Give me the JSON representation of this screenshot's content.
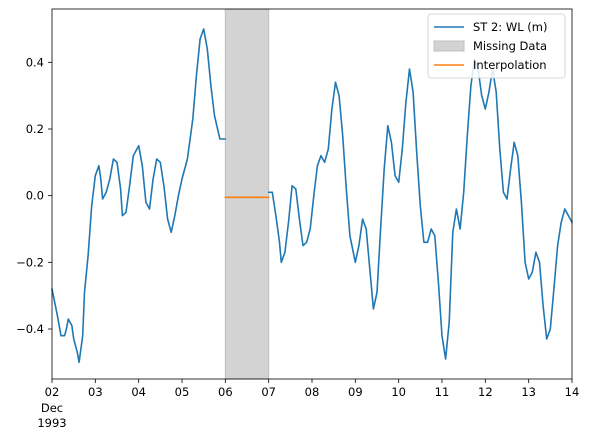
{
  "chart_data": {
    "type": "line",
    "title": "",
    "xlabel": "",
    "ylabel": "",
    "x_axis": {
      "type": "date",
      "range": [
        "1993-12-02",
        "1993-12-14"
      ],
      "ticks": [
        {
          "date": "1993-12-02",
          "label": "02",
          "sublabels": [
            "Dec",
            "1993"
          ]
        },
        {
          "date": "1993-12-03",
          "label": "03"
        },
        {
          "date": "1993-12-04",
          "label": "04"
        },
        {
          "date": "1993-12-05",
          "label": "05"
        },
        {
          "date": "1993-12-06",
          "label": "06"
        },
        {
          "date": "1993-12-07",
          "label": "07"
        },
        {
          "date": "1993-12-08",
          "label": "08"
        },
        {
          "date": "1993-12-09",
          "label": "09"
        },
        {
          "date": "1993-12-10",
          "label": "10"
        },
        {
          "date": "1993-12-11",
          "label": "11"
        },
        {
          "date": "1993-12-12",
          "label": "12"
        },
        {
          "date": "1993-12-13",
          "label": "13"
        },
        {
          "date": "1993-12-14",
          "label": "14"
        }
      ]
    },
    "y_axis": {
      "range": [
        -0.55,
        0.56
      ],
      "ticks": [
        {
          "value": -0.4,
          "label": "−0.4"
        },
        {
          "value": -0.2,
          "label": "−0.2"
        },
        {
          "value": 0.0,
          "label": "0.0"
        },
        {
          "value": 0.2,
          "label": "0.2"
        },
        {
          "value": 0.4,
          "label": "0.4"
        }
      ]
    },
    "grid": false,
    "legend_position": "top-right",
    "series": [
      {
        "name": "ST 2: WL (m)",
        "kind": "line",
        "color": "#1f77b4",
        "segments": [
          [
            [
              "1993-12-02 00:00",
              -0.28
            ],
            [
              "1993-12-02 03:00",
              -0.36
            ],
            [
              "1993-12-02 05:00",
              -0.42
            ],
            [
              "1993-12-02 07:00",
              -0.42
            ],
            [
              "1993-12-02 08:00",
              -0.4
            ],
            [
              "1993-12-02 09:00",
              -0.37
            ],
            [
              "1993-12-02 11:00",
              -0.39
            ],
            [
              "1993-12-02 12:00",
              -0.43
            ],
            [
              "1993-12-02 14:00",
              -0.47
            ],
            [
              "1993-12-02 15:00",
              -0.5
            ],
            [
              "1993-12-02 17:00",
              -0.42
            ],
            [
              "1993-12-02 18:00",
              -0.29
            ],
            [
              "1993-12-02 20:00",
              -0.18
            ],
            [
              "1993-12-02 22:00",
              -0.03
            ],
            [
              "1993-12-03 00:00",
              0.06
            ],
            [
              "1993-12-03 02:00",
              0.09
            ],
            [
              "1993-12-03 03:00",
              0.05
            ],
            [
              "1993-12-03 04:00",
              -0.01
            ],
            [
              "1993-12-03 06:00",
              0.01
            ],
            [
              "1993-12-03 08:00",
              0.05
            ],
            [
              "1993-12-03 10:00",
              0.11
            ],
            [
              "1993-12-03 12:00",
              0.1
            ],
            [
              "1993-12-03 14:00",
              0.02
            ],
            [
              "1993-12-03 15:00",
              -0.06
            ],
            [
              "1993-12-03 17:00",
              -0.05
            ],
            [
              "1993-12-03 19:00",
              0.03
            ],
            [
              "1993-12-03 21:00",
              0.12
            ],
            [
              "1993-12-04 00:00",
              0.15
            ],
            [
              "1993-12-04 02:00",
              0.09
            ],
            [
              "1993-12-04 04:00",
              -0.02
            ],
            [
              "1993-12-04 06:00",
              -0.04
            ],
            [
              "1993-12-04 08:00",
              0.05
            ],
            [
              "1993-12-04 10:00",
              0.11
            ],
            [
              "1993-12-04 12:00",
              0.1
            ],
            [
              "1993-12-04 14:00",
              0.03
            ],
            [
              "1993-12-04 16:00",
              -0.07
            ],
            [
              "1993-12-04 18:00",
              -0.11
            ],
            [
              "1993-12-04 20:00",
              -0.06
            ],
            [
              "1993-12-04 22:00",
              0.0
            ],
            [
              "1993-12-05 00:00",
              0.05
            ],
            [
              "1993-12-05 03:00",
              0.11
            ],
            [
              "1993-12-05 06:00",
              0.23
            ],
            [
              "1993-12-05 08:00",
              0.36
            ],
            [
              "1993-12-05 10:00",
              0.47
            ],
            [
              "1993-12-05 12:00",
              0.5
            ],
            [
              "1993-12-05 14:00",
              0.44
            ],
            [
              "1993-12-05 16:00",
              0.33
            ],
            [
              "1993-12-05 18:00",
              0.24
            ],
            [
              "1993-12-05 21:00",
              0.17
            ],
            [
              "1993-12-06 00:00",
              0.17
            ]
          ],
          [
            [
              "1993-12-07 00:00",
              0.01
            ],
            [
              "1993-12-07 02:00",
              0.01
            ],
            [
              "1993-12-07 04:00",
              -0.06
            ],
            [
              "1993-12-07 06:00",
              -0.14
            ],
            [
              "1993-12-07 07:00",
              -0.2
            ],
            [
              "1993-12-07 09:00",
              -0.17
            ],
            [
              "1993-12-07 11:00",
              -0.08
            ],
            [
              "1993-12-07 13:00",
              0.03
            ],
            [
              "1993-12-07 15:00",
              0.02
            ],
            [
              "1993-12-07 17:00",
              -0.07
            ],
            [
              "1993-12-07 19:00",
              -0.15
            ],
            [
              "1993-12-07 21:00",
              -0.14
            ],
            [
              "1993-12-07 23:00",
              -0.1
            ],
            [
              "1993-12-08 01:00",
              0.0
            ],
            [
              "1993-12-08 03:00",
              0.09
            ],
            [
              "1993-12-08 05:00",
              0.12
            ],
            [
              "1993-12-08 07:00",
              0.1
            ],
            [
              "1993-12-08 09:00",
              0.14
            ],
            [
              "1993-12-08 11:00",
              0.26
            ],
            [
              "1993-12-08 13:00",
              0.34
            ],
            [
              "1993-12-08 15:00",
              0.3
            ],
            [
              "1993-12-08 17:00",
              0.18
            ],
            [
              "1993-12-08 19:00",
              0.02
            ],
            [
              "1993-12-08 21:00",
              -0.12
            ],
            [
              "1993-12-09 00:00",
              -0.2
            ],
            [
              "1993-12-09 02:00",
              -0.15
            ],
            [
              "1993-12-09 04:00",
              -0.07
            ],
            [
              "1993-12-09 06:00",
              -0.1
            ],
            [
              "1993-12-09 08:00",
              -0.22
            ],
            [
              "1993-12-09 10:00",
              -0.34
            ],
            [
              "1993-12-09 12:00",
              -0.29
            ],
            [
              "1993-12-09 14:00",
              -0.1
            ],
            [
              "1993-12-09 16:00",
              0.08
            ],
            [
              "1993-12-09 18:00",
              0.21
            ],
            [
              "1993-12-09 20:00",
              0.16
            ],
            [
              "1993-12-09 22:00",
              0.06
            ],
            [
              "1993-12-10 00:00",
              0.04
            ],
            [
              "1993-12-10 02:00",
              0.14
            ],
            [
              "1993-12-10 04:00",
              0.28
            ],
            [
              "1993-12-10 06:00",
              0.38
            ],
            [
              "1993-12-10 08:00",
              0.31
            ],
            [
              "1993-12-10 10:00",
              0.13
            ],
            [
              "1993-12-10 12:00",
              -0.03
            ],
            [
              "1993-12-10 14:00",
              -0.14
            ],
            [
              "1993-12-10 16:00",
              -0.14
            ],
            [
              "1993-12-10 18:00",
              -0.1
            ],
            [
              "1993-12-10 20:00",
              -0.12
            ],
            [
              "1993-12-10 22:00",
              -0.26
            ],
            [
              "1993-12-11 00:00",
              -0.42
            ],
            [
              "1993-12-11 02:00",
              -0.49
            ],
            [
              "1993-12-11 04:00",
              -0.38
            ],
            [
              "1993-12-11 06:00",
              -0.11
            ],
            [
              "1993-12-11 08:00",
              -0.04
            ],
            [
              "1993-12-11 10:00",
              -0.1
            ],
            [
              "1993-12-11 12:00",
              0.01
            ],
            [
              "1993-12-11 14:00",
              0.18
            ],
            [
              "1993-12-11 16:00",
              0.33
            ],
            [
              "1993-12-11 18:00",
              0.41
            ],
            [
              "1993-12-11 20:00",
              0.38
            ],
            [
              "1993-12-11 22:00",
              0.3
            ],
            [
              "1993-12-12 00:00",
              0.26
            ],
            [
              "1993-12-12 02:00",
              0.31
            ],
            [
              "1993-12-12 04:00",
              0.38
            ],
            [
              "1993-12-12 06:00",
              0.31
            ],
            [
              "1993-12-12 08:00",
              0.14
            ],
            [
              "1993-12-12 10:00",
              0.01
            ],
            [
              "1993-12-12 12:00",
              -0.01
            ],
            [
              "1993-12-12 14:00",
              0.08
            ],
            [
              "1993-12-12 16:00",
              0.16
            ],
            [
              "1993-12-12 18:00",
              0.12
            ],
            [
              "1993-12-12 20:00",
              -0.02
            ],
            [
              "1993-12-12 22:00",
              -0.2
            ],
            [
              "1993-12-13 00:00",
              -0.25
            ],
            [
              "1993-12-13 02:00",
              -0.23
            ],
            [
              "1993-12-13 04:00",
              -0.17
            ],
            [
              "1993-12-13 06:00",
              -0.2
            ],
            [
              "1993-12-13 08:00",
              -0.33
            ],
            [
              "1993-12-13 10:00",
              -0.43
            ],
            [
              "1993-12-13 12:00",
              -0.4
            ],
            [
              "1993-12-13 14:00",
              -0.28
            ],
            [
              "1993-12-13 16:00",
              -0.15
            ],
            [
              "1993-12-13 18:00",
              -0.08
            ],
            [
              "1993-12-13 20:00",
              -0.04
            ],
            [
              "1993-12-14 00:00",
              -0.08
            ]
          ]
        ]
      },
      {
        "name": "Missing Data",
        "kind": "span",
        "color": "#d3d3d3",
        "edge_color": "#bfbfbf",
        "x_start": "1993-12-06",
        "x_end": "1993-12-07"
      },
      {
        "name": "Interpolation",
        "kind": "line",
        "color": "#ff7f0e",
        "points": [
          [
            "1993-12-06 00:00",
            -0.005
          ],
          [
            "1993-12-07 00:00",
            -0.005
          ]
        ]
      }
    ]
  }
}
